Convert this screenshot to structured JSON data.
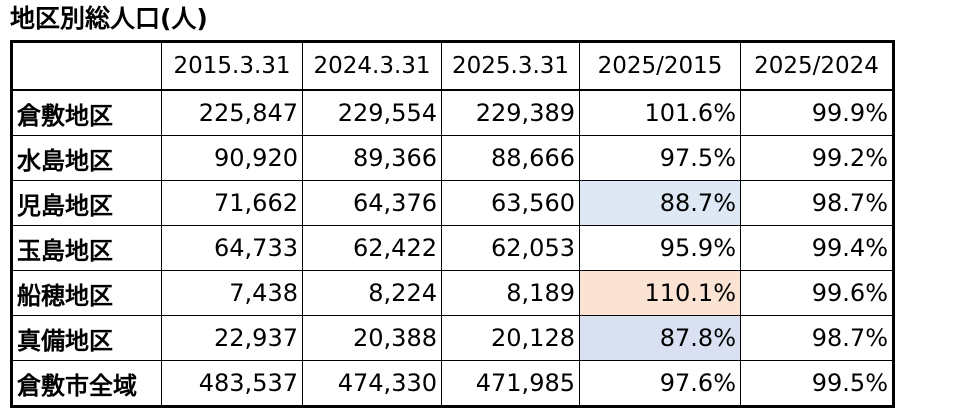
{
  "header": {
    "title": "地区別総人口(人)"
  },
  "table": {
    "columns": [
      "2015.3.31",
      "2024.3.31",
      "2025.3.31",
      "2025/2015",
      "2025/2024"
    ],
    "rows": [
      [
        "倉敷地区",
        "225,847",
        "229,554",
        "229,389",
        "101.6%",
        "99.9%"
      ],
      [
        "水島地区",
        "90,920",
        "89,366",
        "88,666",
        "97.5%",
        "99.2%"
      ],
      [
        "児島地区",
        "71,662",
        "64,376",
        "63,560",
        "88.7%",
        "98.7%"
      ],
      [
        "玉島地区",
        "64,733",
        "62,422",
        "62,053",
        "95.9%",
        "99.4%"
      ],
      [
        "船穂地区",
        "7,438",
        "8,224",
        "8,189",
        "110.1%",
        "99.6%"
      ],
      [
        "真備地区",
        "22,937",
        "20,388",
        "20,128",
        "87.8%",
        "98.7%"
      ],
      [
        "倉敷市全域",
        "483,537",
        "474,330",
        "471,985",
        "97.6%",
        "99.5%"
      ]
    ]
  }
}
